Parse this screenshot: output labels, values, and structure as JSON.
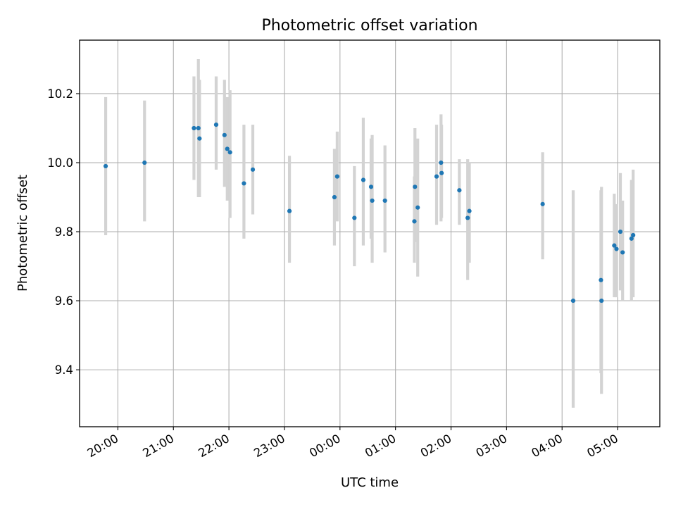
{
  "chart_data": {
    "type": "scatter",
    "title": "Photometric offset variation",
    "xlabel": "UTC time",
    "ylabel": "Photometric offset",
    "x_unit": "hours UTC (values past 24 are after midnight of the next day)",
    "xlim": [
      19.31,
      29.76
    ],
    "ylim": [
      9.235,
      10.355
    ],
    "xticks": [
      {
        "value": 20,
        "label": "20:00"
      },
      {
        "value": 21,
        "label": "21:00"
      },
      {
        "value": 22,
        "label": "22:00"
      },
      {
        "value": 23,
        "label": "23:00"
      },
      {
        "value": 24,
        "label": "00:00"
      },
      {
        "value": 25,
        "label": "01:00"
      },
      {
        "value": 26,
        "label": "02:00"
      },
      {
        "value": 27,
        "label": "03:00"
      },
      {
        "value": 28,
        "label": "04:00"
      },
      {
        "value": 29,
        "label": "05:00"
      }
    ],
    "yticks": [
      {
        "value": 9.4,
        "label": "9.4"
      },
      {
        "value": 9.6,
        "label": "9.6"
      },
      {
        "value": 9.8,
        "label": "9.8"
      },
      {
        "value": 10.0,
        "label": "10.0"
      },
      {
        "value": 10.2,
        "label": "10.2"
      }
    ],
    "grid": true,
    "colors": {
      "point": "#1f77b4",
      "errorbar": "#d3d3d3",
      "grid": "#b0b0b0",
      "axes": "#000000"
    },
    "points": [
      {
        "x": 19.78,
        "y": 9.99,
        "yerr_low": 9.79,
        "yerr_high": 10.19
      },
      {
        "x": 20.48,
        "y": 10.0,
        "yerr_low": 9.83,
        "yerr_high": 10.18
      },
      {
        "x": 21.37,
        "y": 10.1,
        "yerr_low": 9.95,
        "yerr_high": 10.25
      },
      {
        "x": 21.45,
        "y": 10.1,
        "yerr_low": 9.9,
        "yerr_high": 10.3
      },
      {
        "x": 21.47,
        "y": 10.07,
        "yerr_low": 9.9,
        "yerr_high": 10.24
      },
      {
        "x": 21.77,
        "y": 10.11,
        "yerr_low": 9.98,
        "yerr_high": 10.25
      },
      {
        "x": 21.92,
        "y": 10.08,
        "yerr_low": 9.93,
        "yerr_high": 10.24
      },
      {
        "x": 21.97,
        "y": 10.04,
        "yerr_low": 9.89,
        "yerr_high": 10.19
      },
      {
        "x": 22.02,
        "y": 10.03,
        "yerr_low": 9.84,
        "yerr_high": 10.21
      },
      {
        "x": 22.27,
        "y": 9.94,
        "yerr_low": 9.78,
        "yerr_high": 10.11
      },
      {
        "x": 22.43,
        "y": 9.98,
        "yerr_low": 9.85,
        "yerr_high": 10.11
      },
      {
        "x": 23.09,
        "y": 9.86,
        "yerr_low": 9.71,
        "yerr_high": 10.02
      },
      {
        "x": 23.9,
        "y": 9.9,
        "yerr_low": 9.76,
        "yerr_high": 10.04
      },
      {
        "x": 23.95,
        "y": 9.96,
        "yerr_low": 9.83,
        "yerr_high": 10.09
      },
      {
        "x": 24.26,
        "y": 9.84,
        "yerr_low": 9.7,
        "yerr_high": 9.99
      },
      {
        "x": 24.42,
        "y": 9.95,
        "yerr_low": 9.76,
        "yerr_high": 10.13
      },
      {
        "x": 24.56,
        "y": 9.93,
        "yerr_low": 9.78,
        "yerr_high": 10.07
      },
      {
        "x": 24.58,
        "y": 9.89,
        "yerr_low": 9.71,
        "yerr_high": 10.08
      },
      {
        "x": 24.81,
        "y": 9.89,
        "yerr_low": 9.74,
        "yerr_high": 10.05
      },
      {
        "x": 25.34,
        "y": 9.83,
        "yerr_low": 9.71,
        "yerr_high": 9.96
      },
      {
        "x": 25.35,
        "y": 9.93,
        "yerr_low": 9.77,
        "yerr_high": 10.1
      },
      {
        "x": 25.4,
        "y": 9.87,
        "yerr_low": 9.67,
        "yerr_high": 10.07
      },
      {
        "x": 25.74,
        "y": 9.96,
        "yerr_low": 9.82,
        "yerr_high": 10.11
      },
      {
        "x": 25.82,
        "y": 10.0,
        "yerr_low": 9.83,
        "yerr_high": 10.14
      },
      {
        "x": 25.83,
        "y": 9.97,
        "yerr_low": 9.84,
        "yerr_high": 10.11
      },
      {
        "x": 26.15,
        "y": 9.92,
        "yerr_low": 9.82,
        "yerr_high": 10.01
      },
      {
        "x": 26.3,
        "y": 9.84,
        "yerr_low": 9.66,
        "yerr_high": 10.01
      },
      {
        "x": 26.33,
        "y": 9.86,
        "yerr_low": 9.71,
        "yerr_high": 10.0
      },
      {
        "x": 27.65,
        "y": 9.88,
        "yerr_low": 9.72,
        "yerr_high": 10.03
      },
      {
        "x": 28.2,
        "y": 9.6,
        "yerr_low": 9.29,
        "yerr_high": 9.92
      },
      {
        "x": 28.7,
        "y": 9.66,
        "yerr_low": 9.39,
        "yerr_high": 9.92
      },
      {
        "x": 28.71,
        "y": 9.6,
        "yerr_low": 9.33,
        "yerr_high": 9.93
      },
      {
        "x": 28.94,
        "y": 9.76,
        "yerr_low": 9.61,
        "yerr_high": 9.91
      },
      {
        "x": 28.98,
        "y": 9.75,
        "yerr_low": 9.61,
        "yerr_high": 9.88
      },
      {
        "x": 29.05,
        "y": 9.8,
        "yerr_low": 9.63,
        "yerr_high": 9.97
      },
      {
        "x": 29.09,
        "y": 9.74,
        "yerr_low": 9.6,
        "yerr_high": 9.89
      },
      {
        "x": 29.25,
        "y": 9.78,
        "yerr_low": 9.6,
        "yerr_high": 9.95
      },
      {
        "x": 29.28,
        "y": 9.79,
        "yerr_low": 9.61,
        "yerr_high": 9.98
      }
    ]
  }
}
